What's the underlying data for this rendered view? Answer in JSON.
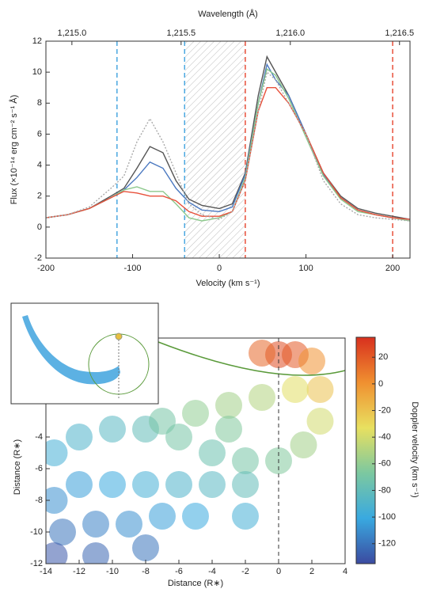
{
  "chart_data": [
    {
      "type": "line",
      "title": "Wavelength (Å)",
      "x_label": "Velocity (km s⁻¹)",
      "y_label": "Flux (×10⁻¹⁴ erg cm⁻² s⁻¹ Å)",
      "x": [
        -200,
        -175,
        -150,
        -125,
        -110,
        -95,
        -80,
        -65,
        -50,
        -35,
        -20,
        0,
        15,
        30,
        45,
        55,
        65,
        80,
        100,
        120,
        140,
        160,
        180,
        200,
        220
      ],
      "series": [
        {
          "color": "#555555",
          "dash": false,
          "values": [
            0.6,
            0.8,
            1.2,
            2.0,
            2.5,
            3.8,
            5.2,
            4.8,
            3.0,
            1.8,
            1.4,
            1.2,
            1.5,
            3.5,
            8.5,
            11.0,
            10.0,
            8.5,
            6.0,
            3.5,
            2.0,
            1.2,
            0.9,
            0.7,
            0.5
          ]
        },
        {
          "color": "#4a78c0",
          "dash": false,
          "values": [
            0.6,
            0.8,
            1.2,
            1.9,
            2.4,
            3.2,
            4.2,
            3.8,
            2.5,
            1.6,
            1.1,
            1.0,
            1.3,
            3.4,
            8.0,
            10.5,
            9.5,
            8.5,
            6.0,
            3.4,
            1.9,
            1.1,
            0.8,
            0.6,
            0.5
          ]
        },
        {
          "color": "#8cc88c",
          "dash": false,
          "values": [
            0.6,
            0.8,
            1.2,
            1.9,
            2.4,
            2.6,
            2.3,
            2.3,
            1.5,
            0.6,
            0.4,
            0.6,
            1.0,
            3.2,
            8.0,
            10.2,
            9.8,
            8.3,
            5.8,
            3.3,
            1.8,
            1.0,
            0.8,
            0.6,
            0.4
          ]
        },
        {
          "color": "#e8503a",
          "dash": false,
          "values": [
            0.6,
            0.8,
            1.2,
            1.9,
            2.3,
            2.2,
            2.0,
            2.0,
            1.7,
            1.0,
            0.7,
            0.7,
            1.0,
            3.0,
            7.5,
            9.0,
            9.0,
            8.0,
            6.0,
            3.5,
            1.9,
            1.1,
            0.8,
            0.6,
            0.5
          ]
        },
        {
          "color": "#aaaaaa",
          "dash": true,
          "values": [
            0.6,
            0.8,
            1.3,
            2.5,
            3.3,
            5.5,
            7.0,
            5.5,
            3.5,
            1.5,
            0.8,
            0.5,
            1.0,
            3.0,
            7.5,
            10.0,
            9.5,
            8.0,
            6.0,
            3.0,
            1.5,
            0.8,
            0.6,
            0.5,
            0.4
          ]
        }
      ],
      "xlim": [
        -200,
        220
      ],
      "ylim": [
        -2,
        12
      ],
      "xticks": [
        -200,
        -100,
        0,
        100,
        200
      ],
      "yticks": [
        -2,
        0,
        2,
        4,
        6,
        8,
        10,
        12
      ],
      "x2lim": [
        1214.881,
        1216.548
      ],
      "x2ticks": [
        {
          "value": 1215.0,
          "label": "1,215.0"
        },
        {
          "value": 1215.5,
          "label": "1,215.5"
        },
        {
          "value": 1216.0,
          "label": "1,216.0"
        },
        {
          "value": 1216.5,
          "label": "1,216.5"
        }
      ],
      "vlines": [
        {
          "value": -118,
          "color": "#4aa8e0"
        },
        {
          "value": -40,
          "color": "#4aa8e0"
        },
        {
          "value": 30,
          "color": "#e8503a"
        },
        {
          "value": 200,
          "color": "#e8503a"
        }
      ],
      "shade": [
        -40,
        30
      ]
    },
    {
      "type": "scatter",
      "x_label": "Distance (R∗)",
      "y_label": "Distance (R∗)",
      "colorbar_label": "Doppler velocity (km s⁻¹)",
      "x": [
        0,
        -1,
        1,
        2,
        2.5,
        2.5,
        1.5,
        0,
        -2,
        -4,
        -6,
        -8,
        -10,
        -12,
        -13.5,
        1,
        -1,
        -3,
        -5,
        -7,
        -2,
        -4,
        -6,
        -8,
        -10,
        -12,
        -13.5,
        -5,
        -7,
        -9,
        -11,
        -13,
        -8,
        -11,
        -13.5,
        -2,
        -3
      ],
      "y": [
        1.2,
        1.3,
        1.2,
        0.8,
        -1,
        -3,
        -4.5,
        -5.5,
        -5.5,
        -5,
        -4,
        -3.5,
        -3.5,
        -4,
        -5,
        -1,
        -1.5,
        -2,
        -2.5,
        -3,
        -7,
        -7,
        -7,
        -7,
        -7,
        -7,
        -8,
        -9,
        -9,
        -9.5,
        -9.5,
        -10,
        -11,
        -11.5,
        -11.5,
        -9,
        -3.5
      ],
      "values": [
        25,
        15,
        20,
        0,
        -20,
        -40,
        -55,
        -65,
        -70,
        -75,
        -70,
        -80,
        -85,
        -90,
        -95,
        -35,
        -50,
        -55,
        -60,
        -70,
        -80,
        -85,
        -90,
        -95,
        -100,
        -105,
        -110,
        -100,
        -105,
        -110,
        -115,
        -120,
        -120,
        -125,
        -130,
        -95,
        -65
      ],
      "xlim": [
        -14,
        4
      ],
      "ylim": [
        -12,
        2.25
      ],
      "xticks": [
        -14,
        -12,
        -10,
        -8,
        -6,
        -4,
        -2,
        0,
        2,
        4
      ],
      "yticks": [
        -4,
        -6,
        -8,
        -10,
        -12
      ],
      "vline": 0,
      "clim": [
        -135,
        35
      ],
      "cticks": [
        20,
        0,
        -20,
        -40,
        -60,
        -80,
        -100,
        -120
      ],
      "colormap": [
        "#3b4aa0",
        "#39a9e0",
        "#7cc8a0",
        "#e8e060",
        "#f09030",
        "#d8301e"
      ]
    }
  ]
}
